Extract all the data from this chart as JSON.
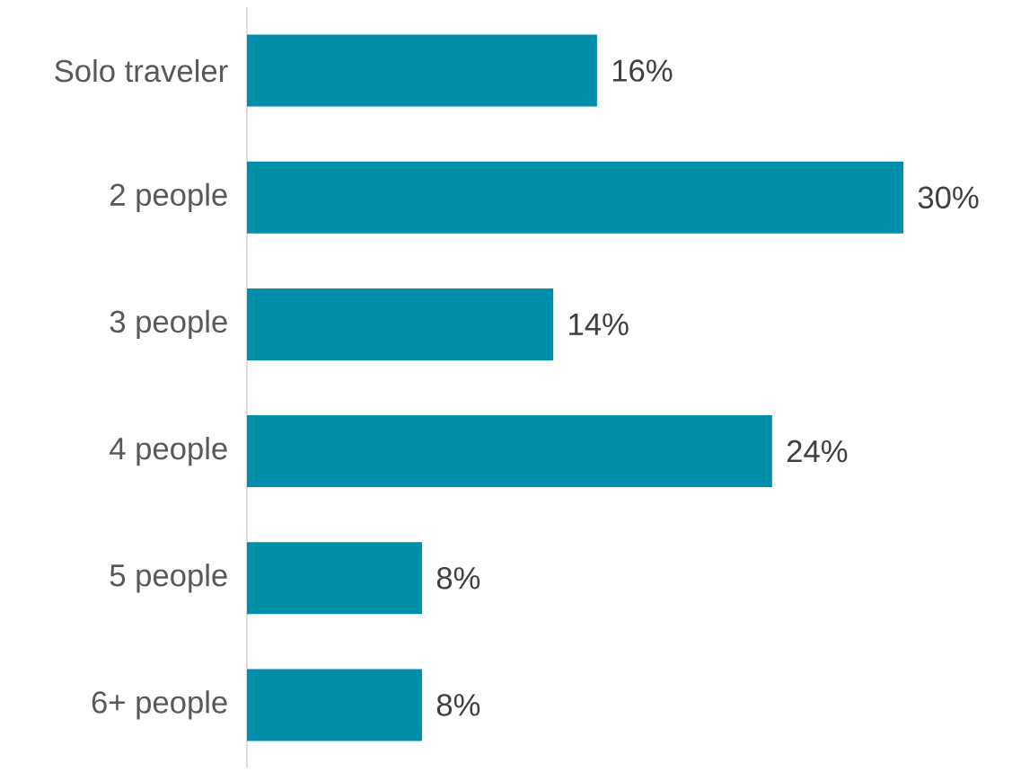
{
  "chart_data": {
    "type": "bar",
    "orientation": "horizontal",
    "categories": [
      "Solo traveler",
      "2 people",
      "3 people",
      "4 people",
      "5 people",
      "6+ people"
    ],
    "values": [
      16,
      30,
      14,
      24,
      8,
      8
    ],
    "value_labels": [
      "16%",
      "30%",
      "14%",
      "24%",
      "8%",
      "8%"
    ],
    "color": "#008fab"
  }
}
